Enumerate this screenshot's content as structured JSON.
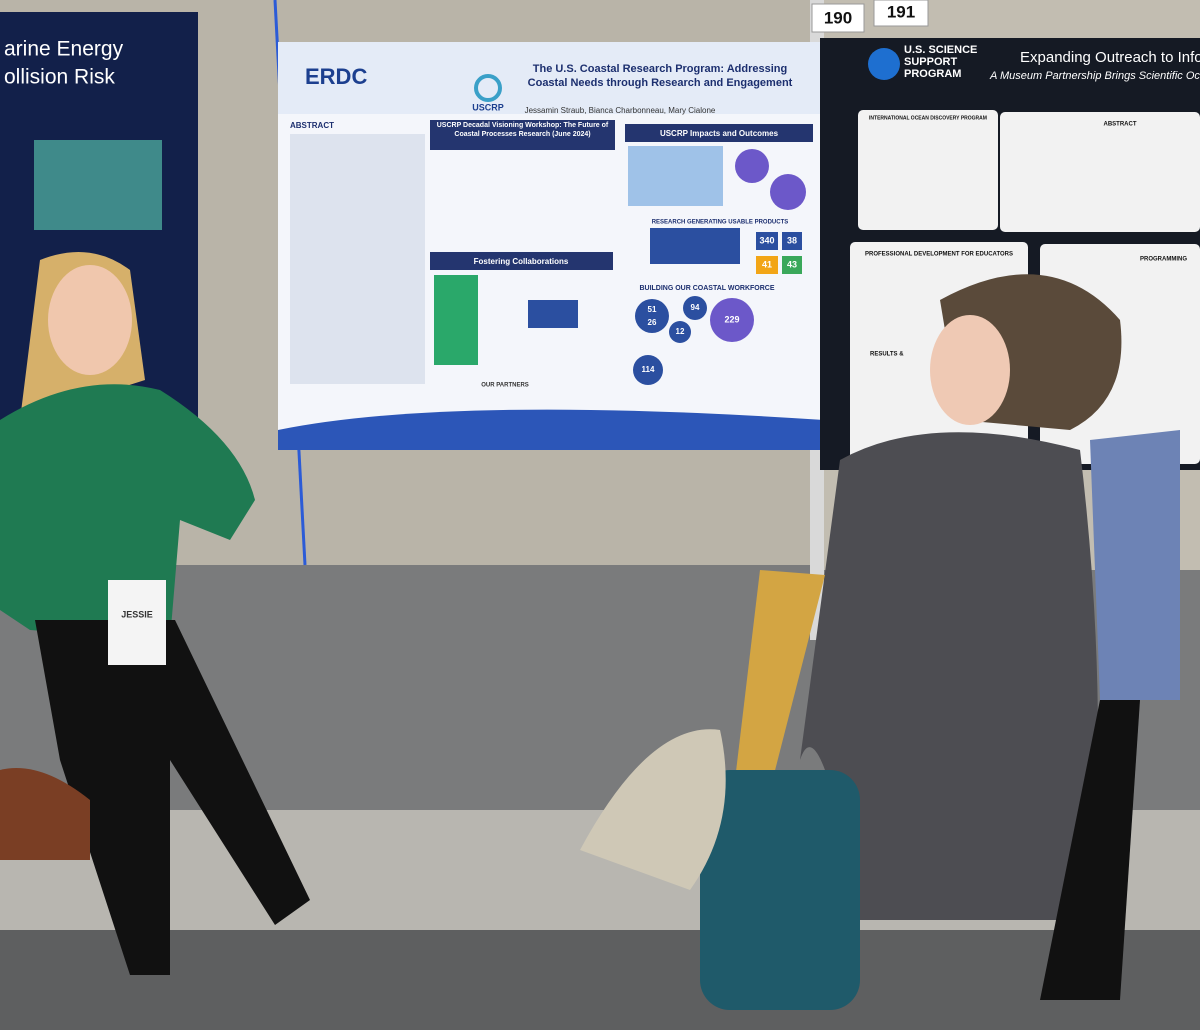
{
  "board_numbers": [
    "190",
    "191"
  ],
  "left_poster": {
    "title_lines": [
      "arine Energy",
      "ollision Risk"
    ]
  },
  "center_poster": {
    "logo_left": "ERDC",
    "logo_center": "USCRP",
    "title": "The U.S. Coastal Research Program: Addressing Coastal Needs through Research and Engagement",
    "authors": "Jessamin Straub, Bianca Charbonneau, Mary Cialone",
    "abstract_heading": "ABSTRACT",
    "section_workshop": "USCRP Decadal Visioning Workshop: The Future of Coastal Processes Research (June 2024)",
    "section_impacts": "USCRP Impacts and Outcomes",
    "section_products": "RESEARCH GENERATING USABLE PRODUCTS",
    "section_collab": "Fostering Collaborations",
    "section_workforce": "BUILDING OUR COASTAL WORKFORCE",
    "stats": [
      "340",
      "38",
      "41",
      "43",
      "51",
      "26",
      "94",
      "12",
      "229",
      "114"
    ],
    "partners": "OUR PARTNERS"
  },
  "right_poster": {
    "program": "U.S. SCIENCE SUPPORT PROGRAM",
    "title": "Expanding Outreach to Infor",
    "subtitle": "A Museum Partnership Brings Scientific Ocea",
    "box_heading": "INTERNATIONAL OCEAN DISCOVERY PROGRAM",
    "abstract_heading": "ABSTRACT",
    "section_educators": "PROFESSIONAL DEVELOPMENT FOR EDUCATORS",
    "section_results": "RESULTS &",
    "section_programming": "PROGRAMMING"
  },
  "badge": {
    "name": "JESSIE"
  }
}
